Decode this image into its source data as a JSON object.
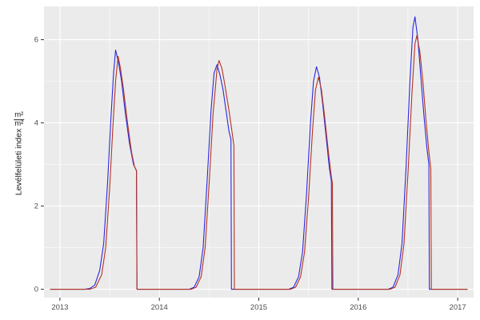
{
  "figure": {
    "background": "#FFFFFF",
    "panel_background": "#EBEBEB",
    "grid_major_color": "#FFFFFF",
    "grid_minor_color": "#FFFFFF",
    "tick_color": "#333333",
    "tick_label_color": "#4D4D4D"
  },
  "chart_data": {
    "type": "line",
    "title": "",
    "xlabel": "",
    "ylabel": "Levélfelületi index",
    "ylabel_unit": {
      "numerator": "m²",
      "denominator": "m²"
    },
    "xlim": [
      2012.84,
      2017.16
    ],
    "ylim": [
      -0.2,
      6.8
    ],
    "grid": "on",
    "legend": "none",
    "xticks": [
      {
        "value": 2013,
        "label": "2013"
      },
      {
        "value": 2014,
        "label": "2014"
      },
      {
        "value": 2015,
        "label": "2015"
      },
      {
        "value": 2016,
        "label": "2016"
      },
      {
        "value": 2017,
        "label": "2017"
      }
    ],
    "yticks": [
      {
        "value": 0,
        "label": "0"
      },
      {
        "value": 2,
        "label": "2"
      },
      {
        "value": 4,
        "label": "4"
      },
      {
        "value": 6,
        "label": "6"
      }
    ],
    "x_minor": [
      2013.5,
      2014.5,
      2015.5,
      2016.5
    ],
    "y_minor": [
      1,
      3,
      5
    ],
    "series": [
      {
        "name": "blue",
        "color": "#2929E0",
        "points": [
          [
            2012.9,
            0
          ],
          [
            2013.25,
            0
          ],
          [
            2013.3,
            0.02
          ],
          [
            2013.35,
            0.1
          ],
          [
            2013.4,
            0.45
          ],
          [
            2013.44,
            1.1
          ],
          [
            2013.48,
            2.6
          ],
          [
            2013.51,
            4.0
          ],
          [
            2013.54,
            5.2
          ],
          [
            2013.56,
            5.75
          ],
          [
            2013.59,
            5.45
          ],
          [
            2013.62,
            5.0
          ],
          [
            2013.66,
            4.2
          ],
          [
            2013.7,
            3.5
          ],
          [
            2013.74,
            3.0
          ],
          [
            2013.77,
            2.85
          ],
          [
            2013.775,
            0
          ],
          [
            2014.0,
            0
          ],
          [
            2014.3,
            0
          ],
          [
            2014.35,
            0.05
          ],
          [
            2014.4,
            0.3
          ],
          [
            2014.44,
            1.0
          ],
          [
            2014.48,
            2.6
          ],
          [
            2014.52,
            4.3
          ],
          [
            2014.55,
            5.2
          ],
          [
            2014.58,
            5.4
          ],
          [
            2014.61,
            5.15
          ],
          [
            2014.64,
            4.8
          ],
          [
            2014.67,
            4.3
          ],
          [
            2014.7,
            3.8
          ],
          [
            2014.72,
            3.6
          ],
          [
            2014.725,
            0
          ],
          [
            2015.0,
            0
          ],
          [
            2015.3,
            0
          ],
          [
            2015.35,
            0.05
          ],
          [
            2015.4,
            0.3
          ],
          [
            2015.44,
            0.9
          ],
          [
            2015.48,
            2.3
          ],
          [
            2015.52,
            4.0
          ],
          [
            2015.55,
            5.0
          ],
          [
            2015.58,
            5.35
          ],
          [
            2015.61,
            5.1
          ],
          [
            2015.64,
            4.5
          ],
          [
            2015.68,
            3.6
          ],
          [
            2015.71,
            2.9
          ],
          [
            2015.73,
            2.6
          ],
          [
            2015.735,
            0
          ],
          [
            2016.0,
            0
          ],
          [
            2016.3,
            0
          ],
          [
            2016.35,
            0.05
          ],
          [
            2016.4,
            0.35
          ],
          [
            2016.44,
            1.1
          ],
          [
            2016.48,
            2.9
          ],
          [
            2016.52,
            5.0
          ],
          [
            2016.55,
            6.3
          ],
          [
            2016.57,
            6.55
          ],
          [
            2016.6,
            6.0
          ],
          [
            2016.63,
            5.1
          ],
          [
            2016.66,
            4.2
          ],
          [
            2016.69,
            3.4
          ],
          [
            2016.71,
            3.0
          ],
          [
            2016.715,
            0
          ],
          [
            2017.1,
            0
          ]
        ]
      },
      {
        "name": "red",
        "color": "#B53224",
        "points": [
          [
            2012.9,
            0
          ],
          [
            2013.3,
            0
          ],
          [
            2013.36,
            0.05
          ],
          [
            2013.42,
            0.35
          ],
          [
            2013.46,
            1.0
          ],
          [
            2013.5,
            2.4
          ],
          [
            2013.53,
            3.8
          ],
          [
            2013.56,
            5.0
          ],
          [
            2013.585,
            5.6
          ],
          [
            2013.61,
            5.3
          ],
          [
            2013.64,
            4.8
          ],
          [
            2013.68,
            4.0
          ],
          [
            2013.72,
            3.3
          ],
          [
            2013.75,
            2.95
          ],
          [
            2013.77,
            2.85
          ],
          [
            2013.775,
            0
          ],
          [
            2014.0,
            0
          ],
          [
            2014.32,
            0
          ],
          [
            2014.37,
            0.05
          ],
          [
            2014.42,
            0.3
          ],
          [
            2014.46,
            1.0
          ],
          [
            2014.5,
            2.5
          ],
          [
            2014.54,
            4.2
          ],
          [
            2014.58,
            5.3
          ],
          [
            2014.6,
            5.5
          ],
          [
            2014.63,
            5.3
          ],
          [
            2014.66,
            4.9
          ],
          [
            2014.7,
            4.3
          ],
          [
            2014.73,
            3.8
          ],
          [
            2014.75,
            3.45
          ],
          [
            2014.755,
            0
          ],
          [
            2015.0,
            0
          ],
          [
            2015.32,
            0
          ],
          [
            2015.37,
            0.05
          ],
          [
            2015.42,
            0.3
          ],
          [
            2015.46,
            0.9
          ],
          [
            2015.5,
            2.2
          ],
          [
            2015.54,
            3.8
          ],
          [
            2015.57,
            4.8
          ],
          [
            2015.6,
            5.1
          ],
          [
            2015.63,
            4.8
          ],
          [
            2015.66,
            4.2
          ],
          [
            2015.7,
            3.3
          ],
          [
            2015.73,
            2.7
          ],
          [
            2015.74,
            2.55
          ],
          [
            2015.745,
            0
          ],
          [
            2016.0,
            0
          ],
          [
            2016.32,
            0
          ],
          [
            2016.37,
            0.05
          ],
          [
            2016.42,
            0.35
          ],
          [
            2016.46,
            1.1
          ],
          [
            2016.5,
            2.8
          ],
          [
            2016.54,
            4.7
          ],
          [
            2016.57,
            5.9
          ],
          [
            2016.59,
            6.1
          ],
          [
            2016.62,
            5.7
          ],
          [
            2016.65,
            5.0
          ],
          [
            2016.68,
            4.1
          ],
          [
            2016.71,
            3.3
          ],
          [
            2016.73,
            2.9
          ],
          [
            2016.735,
            0
          ],
          [
            2017.1,
            0
          ]
        ]
      }
    ]
  }
}
